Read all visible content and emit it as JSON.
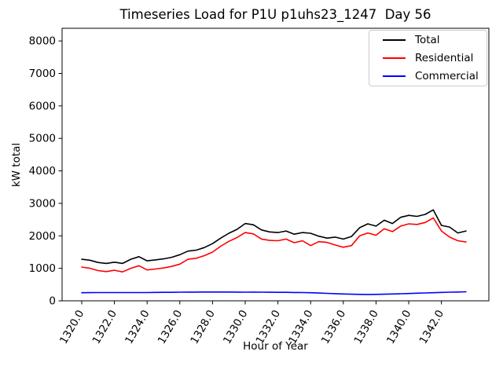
{
  "figure": {
    "title": "Timeseries Load for P1U p1uhs23_1247  Day 56",
    "xlabel": "Hour of Year",
    "ylabel": "kW total"
  },
  "chart_data": {
    "type": "line",
    "title": "Timeseries Load for P1U p1uhs23_1247  Day 56",
    "xlabel": "Hour of Year",
    "ylabel": "kW total",
    "grid": false,
    "legend_position": "upper right",
    "xlim": [
      1318.8,
      1344.9
    ],
    "ylim": [
      0,
      8390
    ],
    "x_ticks": [
      1320,
      1322,
      1324,
      1326,
      1328,
      1330,
      1332,
      1334,
      1336,
      1338,
      1340,
      1342
    ],
    "x_tick_labels": [
      "1320.0",
      "1322.0",
      "1324.0",
      "1326.0",
      "1328.0",
      "1330.0",
      "1332.0",
      "1334.0",
      "1336.0",
      "1338.0",
      "1340.0",
      "1342.0"
    ],
    "x_tick_rotation_deg": 60,
    "y_ticks": [
      0,
      1000,
      2000,
      3000,
      4000,
      5000,
      6000,
      7000,
      8000
    ],
    "y_tick_labels": [
      "0",
      "1000",
      "2000",
      "3000",
      "4000",
      "5000",
      "6000",
      "7000",
      "8000"
    ],
    "x_start": 1320.0,
    "x_step": 0.5,
    "series": [
      {
        "name": "Total",
        "color": "#000000",
        "values": [
          1280,
          1250,
          1180,
          1150,
          1190,
          1150,
          1280,
          1360,
          1230,
          1260,
          1290,
          1340,
          1420,
          1530,
          1560,
          1640,
          1760,
          1930,
          2080,
          2200,
          2380,
          2340,
          2180,
          2120,
          2100,
          2150,
          2050,
          2100,
          2080,
          1990,
          1930,
          1960,
          1900,
          1980,
          2250,
          2370,
          2300,
          2480,
          2380,
          2570,
          2630,
          2600,
          2660,
          2800,
          2320,
          2270,
          2090,
          2150
        ]
      },
      {
        "name": "Residential",
        "color": "#ff0000",
        "values": [
          1040,
          1000,
          930,
          900,
          940,
          890,
          1000,
          1080,
          950,
          980,
          1010,
          1060,
          1130,
          1280,
          1310,
          1390,
          1500,
          1680,
          1830,
          1950,
          2100,
          2060,
          1900,
          1860,
          1850,
          1900,
          1790,
          1850,
          1700,
          1820,
          1800,
          1720,
          1650,
          1700,
          2000,
          2090,
          2020,
          2220,
          2130,
          2300,
          2370,
          2350,
          2410,
          2550,
          2150,
          1960,
          1850,
          1810
        ]
      },
      {
        "name": "Commercial",
        "color": "#0000ff",
        "values": [
          250,
          252,
          253,
          254,
          255,
          254,
          253,
          253,
          255,
          258,
          260,
          262,
          265,
          268,
          268,
          270,
          272,
          272,
          270,
          268,
          267,
          268,
          266,
          264,
          262,
          260,
          257,
          254,
          248,
          240,
          230,
          220,
          210,
          202,
          198,
          196,
          198,
          204,
          210,
          218,
          226,
          234,
          242,
          250,
          258,
          266,
          272,
          278
        ]
      }
    ]
  }
}
